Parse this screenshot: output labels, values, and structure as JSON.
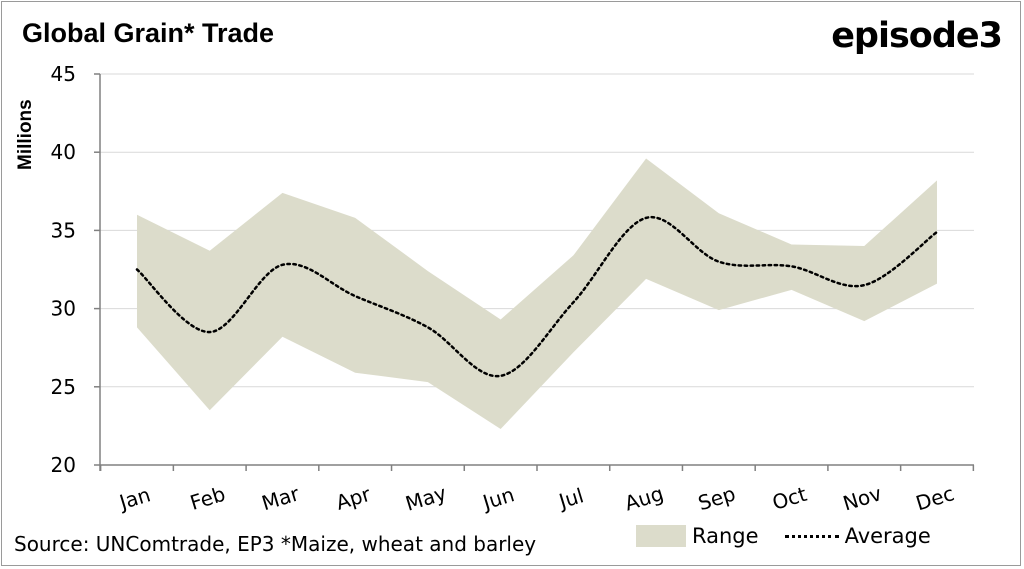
{
  "header": {
    "title": "Global Grain* Trade",
    "brand": "episode3"
  },
  "footer": {
    "source": "Source: UNComtrade, EP3 *Maize, wheat and barley"
  },
  "legend": {
    "range_label": "Range",
    "average_label": "Average"
  },
  "colors": {
    "range_fill": "#dcdccb",
    "average_line": "#000000",
    "grid": "#d9d9d9",
    "axis": "#808080"
  },
  "chart_data": {
    "type": "area",
    "title": "Global Grain* Trade",
    "ylabel": "Millions",
    "xlabel": "",
    "ylim": [
      20,
      45
    ],
    "yticks": [
      20,
      25,
      30,
      35,
      40,
      45
    ],
    "grid": true,
    "legend_position": "bottom-right",
    "categories": [
      "Jan",
      "Feb",
      "Mar",
      "Apr",
      "May",
      "Jun",
      "Jul",
      "Aug",
      "Sep",
      "Oct",
      "Nov",
      "Dec"
    ],
    "series": [
      {
        "name": "Range",
        "kind": "band",
        "high": [
          36.0,
          33.7,
          37.4,
          35.8,
          32.4,
          29.3,
          33.4,
          39.6,
          36.1,
          34.1,
          34.0,
          38.2
        ],
        "low": [
          28.8,
          23.5,
          28.2,
          25.9,
          25.3,
          22.3,
          27.2,
          31.9,
          29.9,
          31.2,
          29.2,
          31.6
        ]
      },
      {
        "name": "Average",
        "kind": "dotted-line",
        "values": [
          32.5,
          28.5,
          32.8,
          30.8,
          28.8,
          25.7,
          30.4,
          35.8,
          33.0,
          32.7,
          31.5,
          34.9
        ]
      }
    ]
  }
}
